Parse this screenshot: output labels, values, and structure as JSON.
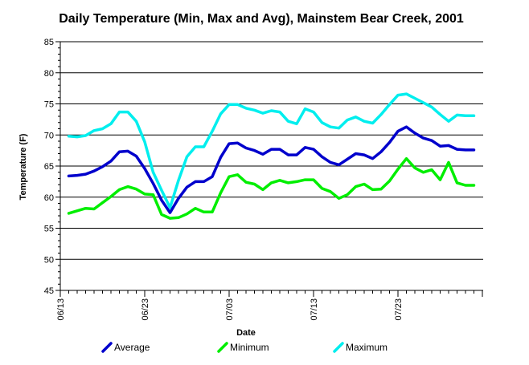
{
  "chart_data": {
    "type": "line",
    "title": "Daily Temperature (Min, Max and Avg), Mainstem Bear Creek, 2001",
    "xlabel": "Date",
    "ylabel": "Temperature (F)",
    "ylim": [
      45,
      85
    ],
    "y_ticks": [
      45,
      50,
      55,
      60,
      65,
      70,
      75,
      80,
      85
    ],
    "x_tick_labels": [
      "06/13",
      "06/23",
      "07/03",
      "07/13",
      "07/23"
    ],
    "grid": "horizontal",
    "legend_position": "bottom",
    "x": [
      "06/14",
      "06/15",
      "06/16",
      "06/17",
      "06/18",
      "06/19",
      "06/20",
      "06/21",
      "06/22",
      "06/23",
      "06/24",
      "06/25",
      "06/26",
      "06/27",
      "06/28",
      "06/29",
      "06/30",
      "07/01",
      "07/02",
      "07/03",
      "07/04",
      "07/05",
      "07/06",
      "07/07",
      "07/08",
      "07/09",
      "07/10",
      "07/11",
      "07/12",
      "07/13",
      "07/14",
      "07/15",
      "07/16",
      "07/17",
      "07/18",
      "07/19",
      "07/20",
      "07/21",
      "07/22",
      "07/23",
      "07/24",
      "07/25",
      "07/26",
      "07/27",
      "07/28",
      "07/29",
      "07/30",
      "07/31",
      "08/01"
    ],
    "series": [
      {
        "name": "Average",
        "color": "#0000cc",
        "values": [
          63.4,
          63.5,
          63.7,
          64.2,
          64.9,
          65.8,
          67.3,
          67.4,
          66.6,
          64.6,
          62.2,
          59.5,
          57.5,
          59.8,
          61.6,
          62.5,
          62.5,
          63.3,
          66.4,
          68.6,
          68.7,
          67.9,
          67.5,
          66.9,
          67.7,
          67.7,
          66.8,
          66.8,
          68.0,
          67.7,
          66.5,
          65.6,
          65.2,
          66.1,
          67.0,
          66.8,
          66.2,
          67.3,
          68.8,
          70.6,
          71.3,
          70.3,
          69.5,
          69.1,
          68.2,
          68.3,
          67.7,
          67.6,
          67.6
        ]
      },
      {
        "name": "Minimum",
        "color": "#00ee00",
        "values": [
          57.4,
          57.8,
          58.2,
          58.1,
          59.1,
          60.1,
          61.2,
          61.7,
          61.3,
          60.5,
          60.4,
          57.2,
          56.6,
          56.7,
          57.3,
          58.2,
          57.6,
          57.6,
          60.7,
          63.3,
          63.6,
          62.4,
          62.1,
          61.2,
          62.3,
          62.7,
          62.3,
          62.5,
          62.8,
          62.8,
          61.4,
          60.9,
          59.8,
          60.4,
          61.7,
          62.1,
          61.2,
          61.3,
          62.6,
          64.5,
          66.2,
          64.7,
          64.0,
          64.4,
          62.8,
          65.6,
          62.3,
          61.9,
          61.9
        ]
      },
      {
        "name": "Maximum",
        "color": "#00eeee",
        "values": [
          69.8,
          69.7,
          69.9,
          70.7,
          71.0,
          71.8,
          73.7,
          73.7,
          72.2,
          68.9,
          64.0,
          61.1,
          58.3,
          62.7,
          66.5,
          68.1,
          68.1,
          70.6,
          73.4,
          74.9,
          74.9,
          74.3,
          74.0,
          73.5,
          73.9,
          73.7,
          72.2,
          71.8,
          74.2,
          73.7,
          72.0,
          71.3,
          71.1,
          72.4,
          72.9,
          72.2,
          71.9,
          73.3,
          74.9,
          76.4,
          76.6,
          75.9,
          75.2,
          74.5,
          73.3,
          72.2,
          73.2,
          73.1,
          73.1
        ]
      }
    ]
  }
}
